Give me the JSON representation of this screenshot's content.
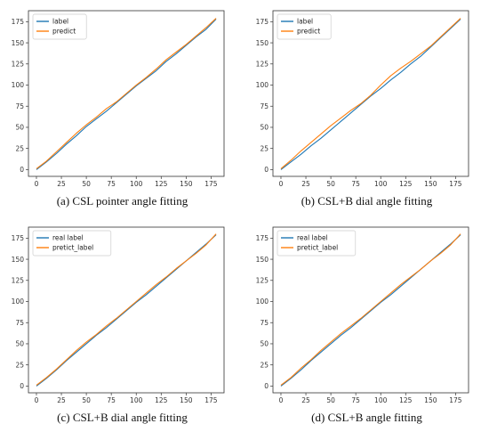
{
  "chart_data": [
    {
      "type": "line",
      "caption": "(a)  CSL pointer angle fitting",
      "xlim": [
        -8,
        188
      ],
      "ylim": [
        -8,
        188
      ],
      "xticks": [
        0,
        25,
        50,
        75,
        100,
        125,
        150,
        175
      ],
      "yticks": [
        0,
        25,
        50,
        75,
        100,
        125,
        150,
        175
      ],
      "legend_position": "top-left",
      "series": [
        {
          "name": "label",
          "color": "#1f77b4",
          "points": [
            [
              0,
              0
            ],
            [
              10,
              9
            ],
            [
              20,
              19
            ],
            [
              30,
              30
            ],
            [
              40,
              40
            ],
            [
              50,
              51
            ],
            [
              60,
              60
            ],
            [
              70,
              69
            ],
            [
              80,
              79
            ],
            [
              90,
              89
            ],
            [
              100,
              99
            ],
            [
              110,
              108
            ],
            [
              120,
              117
            ],
            [
              130,
              128
            ],
            [
              140,
              137
            ],
            [
              150,
              147
            ],
            [
              160,
              157
            ],
            [
              170,
              166
            ],
            [
              180,
              178
            ]
          ]
        },
        {
          "name": "predict",
          "color": "#ff7f0e",
          "points": [
            [
              0,
              1
            ],
            [
              10,
              10
            ],
            [
              20,
              21
            ],
            [
              30,
              32
            ],
            [
              40,
              43
            ],
            [
              50,
              53
            ],
            [
              60,
              62
            ],
            [
              70,
              72
            ],
            [
              80,
              80
            ],
            [
              90,
              90
            ],
            [
              100,
              100
            ],
            [
              110,
              109
            ],
            [
              120,
              119
            ],
            [
              130,
              130
            ],
            [
              140,
              139
            ],
            [
              150,
              148
            ],
            [
              160,
              158
            ],
            [
              170,
              168
            ],
            [
              180,
              179
            ]
          ]
        }
      ]
    },
    {
      "type": "line",
      "caption": "(b)  CSL+B dial angle fitting",
      "xlim": [
        -8,
        188
      ],
      "ylim": [
        -8,
        188
      ],
      "xticks": [
        0,
        25,
        50,
        75,
        100,
        125,
        150,
        175
      ],
      "yticks": [
        0,
        25,
        50,
        75,
        100,
        125,
        150,
        175
      ],
      "legend_position": "top-left",
      "series": [
        {
          "name": "label",
          "color": "#1f77b4",
          "points": [
            [
              0,
              0
            ],
            [
              10,
              9
            ],
            [
              20,
              18
            ],
            [
              30,
              28
            ],
            [
              40,
              37
            ],
            [
              50,
              47
            ],
            [
              60,
              57
            ],
            [
              70,
              67
            ],
            [
              80,
              77
            ],
            [
              90,
              87
            ],
            [
              100,
              96
            ],
            [
              110,
              106
            ],
            [
              120,
              115
            ],
            [
              130,
              125
            ],
            [
              140,
              134
            ],
            [
              150,
              145
            ],
            [
              160,
              156
            ],
            [
              170,
              167
            ],
            [
              180,
              178
            ]
          ]
        },
        {
          "name": "predict",
          "color": "#ff7f0e",
          "points": [
            [
              0,
              1
            ],
            [
              10,
              11
            ],
            [
              20,
              22
            ],
            [
              30,
              32
            ],
            [
              40,
              42
            ],
            [
              50,
              52
            ],
            [
              60,
              61
            ],
            [
              70,
              70
            ],
            [
              80,
              78
            ],
            [
              90,
              88
            ],
            [
              100,
              100
            ],
            [
              110,
              111
            ],
            [
              120,
              120
            ],
            [
              130,
              128
            ],
            [
              140,
              137
            ],
            [
              150,
              146
            ],
            [
              160,
              157
            ],
            [
              170,
              168
            ],
            [
              180,
              179
            ]
          ]
        }
      ]
    },
    {
      "type": "line",
      "caption": "(c)  CSL+B dial angle fitting",
      "xlim": [
        -8,
        188
      ],
      "ylim": [
        -8,
        188
      ],
      "xticks": [
        0,
        25,
        50,
        75,
        100,
        125,
        150,
        175
      ],
      "yticks": [
        0,
        25,
        50,
        75,
        100,
        125,
        150,
        175
      ],
      "legend_position": "top-left",
      "series": [
        {
          "name": "real label",
          "color": "#1f77b4",
          "points": [
            [
              0,
              0
            ],
            [
              10,
              9
            ],
            [
              20,
              19
            ],
            [
              30,
              30
            ],
            [
              40,
              40
            ],
            [
              50,
              50
            ],
            [
              60,
              60
            ],
            [
              70,
              69
            ],
            [
              80,
              79
            ],
            [
              90,
              89
            ],
            [
              100,
              99
            ],
            [
              110,
              108
            ],
            [
              120,
              118
            ],
            [
              130,
              128
            ],
            [
              140,
              138
            ],
            [
              150,
              148
            ],
            [
              160,
              158
            ],
            [
              170,
              168
            ],
            [
              180,
              179
            ]
          ]
        },
        {
          "name": "pretict_label",
          "color": "#ff7f0e",
          "points": [
            [
              0,
              1
            ],
            [
              10,
              10
            ],
            [
              20,
              20
            ],
            [
              30,
              31
            ],
            [
              40,
              42
            ],
            [
              50,
              52
            ],
            [
              60,
              61
            ],
            [
              70,
              71
            ],
            [
              80,
              80
            ],
            [
              90,
              90
            ],
            [
              100,
              100
            ],
            [
              110,
              110
            ],
            [
              120,
              120
            ],
            [
              130,
              129
            ],
            [
              140,
              139
            ],
            [
              150,
              148
            ],
            [
              160,
              157
            ],
            [
              170,
              167
            ],
            [
              180,
              180
            ]
          ]
        }
      ]
    },
    {
      "type": "line",
      "caption": "(d)  CSL+B angle fitting",
      "xlim": [
        -8,
        188
      ],
      "ylim": [
        -8,
        188
      ],
      "xticks": [
        0,
        25,
        50,
        75,
        100,
        125,
        150,
        175
      ],
      "yticks": [
        0,
        25,
        50,
        75,
        100,
        125,
        150,
        175
      ],
      "legend_position": "top-left",
      "series": [
        {
          "name": "real label",
          "color": "#1f77b4",
          "points": [
            [
              0,
              0
            ],
            [
              10,
              9
            ],
            [
              20,
              19
            ],
            [
              30,
              30
            ],
            [
              40,
              40
            ],
            [
              50,
              50
            ],
            [
              60,
              60
            ],
            [
              70,
              69
            ],
            [
              80,
              79
            ],
            [
              90,
              89
            ],
            [
              100,
              99
            ],
            [
              110,
              108
            ],
            [
              120,
              118
            ],
            [
              130,
              128
            ],
            [
              140,
              138
            ],
            [
              150,
              148
            ],
            [
              160,
              158
            ],
            [
              170,
              168
            ],
            [
              180,
              179
            ]
          ]
        },
        {
          "name": "pretict_label",
          "color": "#ff7f0e",
          "points": [
            [
              0,
              1
            ],
            [
              10,
              10
            ],
            [
              20,
              21
            ],
            [
              30,
              31
            ],
            [
              40,
              42
            ],
            [
              50,
              52
            ],
            [
              60,
              62
            ],
            [
              70,
              71
            ],
            [
              80,
              80
            ],
            [
              90,
              90
            ],
            [
              100,
              100
            ],
            [
              110,
              110
            ],
            [
              120,
              120
            ],
            [
              130,
              129
            ],
            [
              140,
              138
            ],
            [
              150,
              148
            ],
            [
              160,
              157
            ],
            [
              170,
              167
            ],
            [
              180,
              180
            ]
          ]
        }
      ]
    }
  ]
}
